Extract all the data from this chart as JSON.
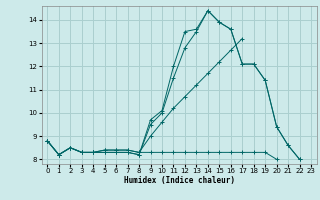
{
  "title": "",
  "xlabel": "Humidex (Indice chaleur)",
  "ylabel": "",
  "bg_color": "#cdeaea",
  "grid_color": "#aacfcf",
  "line_color": "#006666",
  "xlim": [
    -0.5,
    23.5
  ],
  "ylim": [
    7.8,
    14.6
  ],
  "xticks": [
    0,
    1,
    2,
    3,
    4,
    5,
    6,
    7,
    8,
    9,
    10,
    11,
    12,
    13,
    14,
    15,
    16,
    17,
    18,
    19,
    20,
    21,
    22,
    23
  ],
  "yticks": [
    8,
    9,
    10,
    11,
    12,
    13,
    14
  ],
  "series": [
    [
      8.8,
      8.2,
      8.5,
      8.3,
      8.3,
      8.3,
      8.3,
      8.3,
      8.2,
      9.7,
      10.1,
      12.0,
      13.5,
      13.6,
      14.4,
      13.9,
      13.6,
      12.1,
      12.1,
      11.4,
      9.4,
      8.6,
      8.0,
      null
    ],
    [
      8.8,
      8.2,
      8.5,
      8.3,
      8.3,
      8.3,
      8.3,
      8.3,
      8.2,
      9.5,
      10.0,
      11.5,
      12.8,
      13.5,
      14.4,
      13.9,
      13.6,
      12.1,
      12.1,
      11.4,
      9.4,
      8.6,
      8.0,
      null
    ],
    [
      8.8,
      8.2,
      8.5,
      8.3,
      8.3,
      8.4,
      8.4,
      8.4,
      8.3,
      9.0,
      9.6,
      10.2,
      10.7,
      11.2,
      11.7,
      12.2,
      12.7,
      13.2,
      null,
      null,
      null,
      null,
      null,
      null
    ],
    [
      8.8,
      8.2,
      8.5,
      8.3,
      8.3,
      8.4,
      8.4,
      8.4,
      8.3,
      8.3,
      8.3,
      8.3,
      8.3,
      8.3,
      8.3,
      8.3,
      8.3,
      8.3,
      8.3,
      8.3,
      8.0,
      null,
      null,
      null
    ]
  ]
}
